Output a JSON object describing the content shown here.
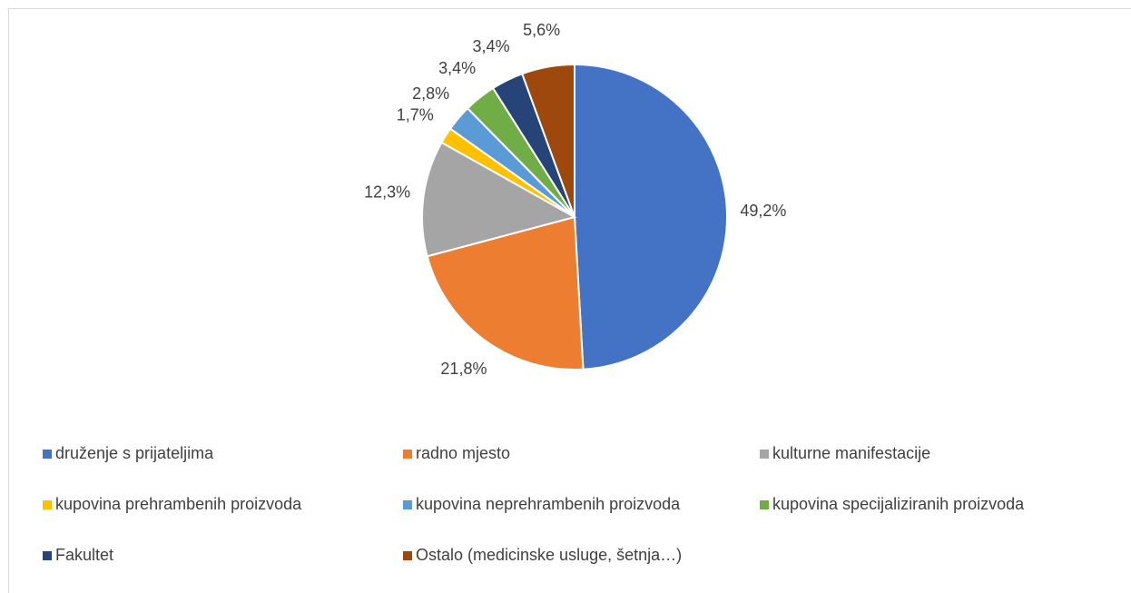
{
  "chart_data": {
    "type": "pie",
    "categories": [
      "druženje s prijateljima",
      "radno mjesto",
      "kulturne manifestacije",
      "kupovina prehrambenih proizvoda",
      "kupovina neprehrambenih proizvoda",
      "kupovina specijaliziranih proizvoda",
      "Fakultet",
      "Ostalo (medicinske usluge, šetnja…)"
    ],
    "values": [
      49.2,
      21.8,
      12.3,
      1.7,
      2.8,
      3.4,
      3.4,
      5.6
    ],
    "value_labels": [
      "49,2%",
      "21,8%",
      "12,3%",
      "1,7%",
      "2,8%",
      "3,4%",
      "3,4%",
      "5,6%"
    ],
    "colors": [
      "#4472c4",
      "#ed7d31",
      "#a5a5a5",
      "#ffc000",
      "#5b9bd5",
      "#70ad47",
      "#264478",
      "#9e480e"
    ],
    "legend": "bottom"
  }
}
